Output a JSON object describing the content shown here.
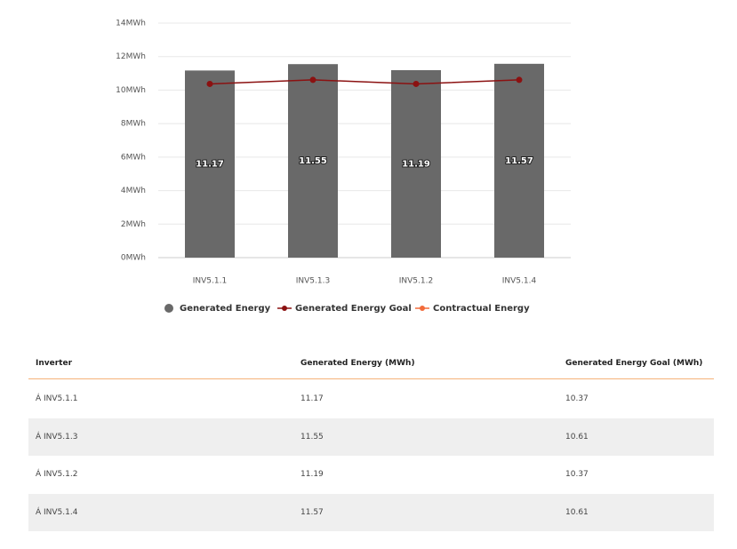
{
  "chart_data": {
    "type": "bar",
    "categories": [
      "INV5.1.1",
      "INV5.1.3",
      "INV5.1.2",
      "INV5.1.4"
    ],
    "series": [
      {
        "name": "Generated Energy",
        "color": "#696969",
        "type": "bar",
        "values": [
          11.17,
          11.55,
          11.19,
          11.57
        ]
      },
      {
        "name": "Generated Energy Goal",
        "color": "#8b1111",
        "type": "line",
        "values": [
          10.37,
          10.61,
          10.37,
          10.61
        ]
      },
      {
        "name": "Contractual Energy",
        "color": "#f26b3a",
        "type": "line"
      }
    ],
    "ylim": [
      0,
      14
    ],
    "yticks": [
      {
        "value": 0,
        "label": "0MWh"
      },
      {
        "value": 2,
        "label": "2MWh"
      },
      {
        "value": 4,
        "label": "4MWh"
      },
      {
        "value": 6,
        "label": "6MWh"
      },
      {
        "value": 8,
        "label": "8MWh"
      },
      {
        "value": 10,
        "label": "10MWh"
      },
      {
        "value": 12,
        "label": "12MWh"
      },
      {
        "value": 14,
        "label": "14MWh"
      }
    ],
    "grid": true,
    "legend": "bottom"
  },
  "table": {
    "headers": [
      "Inverter",
      "Generated Energy (MWh)",
      "Generated Energy Goal (MWh)"
    ],
    "rows": [
      [
        "Á INV5.1.1",
        11.17,
        10.37
      ],
      [
        "Á INV5.1.3",
        11.55,
        10.61
      ],
      [
        "Á INV5.1.2",
        11.19,
        10.37
      ],
      [
        "Á INV5.1.4",
        11.57,
        10.61
      ]
    ]
  }
}
